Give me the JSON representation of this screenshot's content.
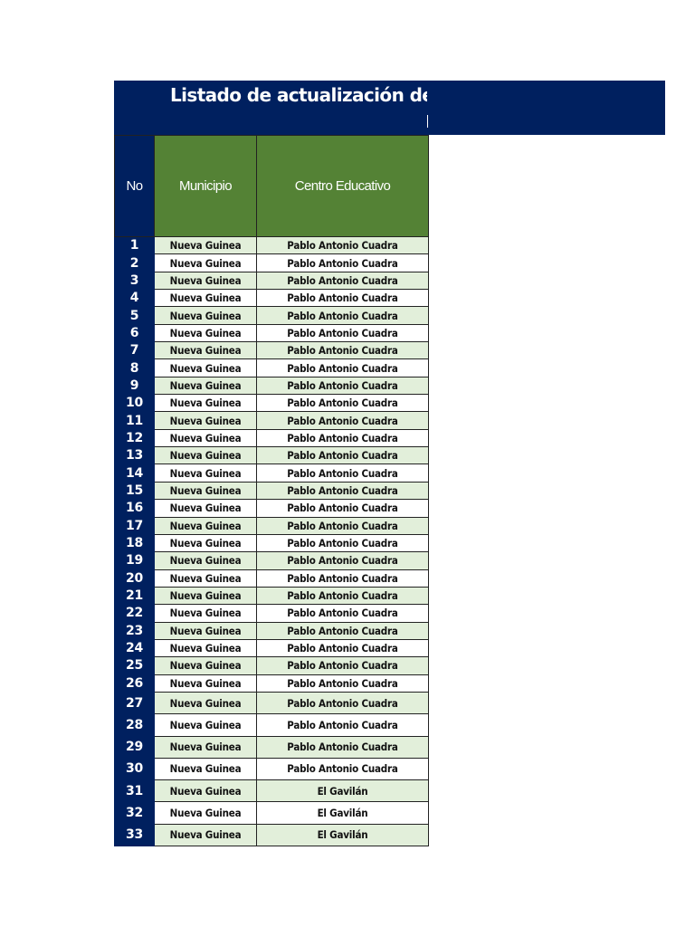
{
  "title": "Listado de actualización de pro",
  "headers": {
    "no": "No",
    "municipio": "Municipio",
    "centro": "Centro Educativo"
  },
  "colors": {
    "navy": "#00205f",
    "header_green": "#548235",
    "row_green": "#e2efda"
  },
  "rows": [
    {
      "no": "1",
      "municipio": "Nueva Guinea",
      "centro": "Pablo Antonio Cuadra"
    },
    {
      "no": "2",
      "municipio": "Nueva Guinea",
      "centro": "Pablo Antonio Cuadra"
    },
    {
      "no": "3",
      "municipio": "Nueva Guinea",
      "centro": "Pablo Antonio Cuadra"
    },
    {
      "no": "4",
      "municipio": "Nueva Guinea",
      "centro": "Pablo Antonio Cuadra"
    },
    {
      "no": "5",
      "municipio": "Nueva Guinea",
      "centro": "Pablo Antonio Cuadra"
    },
    {
      "no": "6",
      "municipio": "Nueva Guinea",
      "centro": "Pablo Antonio Cuadra"
    },
    {
      "no": "7",
      "municipio": "Nueva Guinea",
      "centro": "Pablo Antonio Cuadra"
    },
    {
      "no": "8",
      "municipio": "Nueva Guinea",
      "centro": "Pablo Antonio Cuadra"
    },
    {
      "no": "9",
      "municipio": "Nueva Guinea",
      "centro": "Pablo Antonio Cuadra"
    },
    {
      "no": "10",
      "municipio": "Nueva Guinea",
      "centro": "Pablo Antonio Cuadra"
    },
    {
      "no": "11",
      "municipio": "Nueva Guinea",
      "centro": "Pablo Antonio Cuadra"
    },
    {
      "no": "12",
      "municipio": "Nueva Guinea",
      "centro": "Pablo Antonio Cuadra"
    },
    {
      "no": "13",
      "municipio": "Nueva Guinea",
      "centro": "Pablo Antonio Cuadra"
    },
    {
      "no": "14",
      "municipio": "Nueva Guinea",
      "centro": "Pablo Antonio Cuadra"
    },
    {
      "no": "15",
      "municipio": "Nueva Guinea",
      "centro": "Pablo Antonio Cuadra"
    },
    {
      "no": "16",
      "municipio": "Nueva Guinea",
      "centro": "Pablo Antonio Cuadra"
    },
    {
      "no": "17",
      "municipio": "Nueva Guinea",
      "centro": "Pablo Antonio Cuadra"
    },
    {
      "no": "18",
      "municipio": "Nueva Guinea",
      "centro": "Pablo Antonio Cuadra"
    },
    {
      "no": "19",
      "municipio": "Nueva Guinea",
      "centro": "Pablo Antonio Cuadra"
    },
    {
      "no": "20",
      "municipio": "Nueva Guinea",
      "centro": "Pablo Antonio Cuadra"
    },
    {
      "no": "21",
      "municipio": "Nueva Guinea",
      "centro": "Pablo Antonio Cuadra"
    },
    {
      "no": "22",
      "municipio": "Nueva Guinea",
      "centro": "Pablo Antonio Cuadra"
    },
    {
      "no": "23",
      "municipio": "Nueva Guinea",
      "centro": "Pablo Antonio Cuadra"
    },
    {
      "no": "24",
      "municipio": "Nueva Guinea",
      "centro": "Pablo Antonio Cuadra"
    },
    {
      "no": "25",
      "municipio": "Nueva Guinea",
      "centro": "Pablo Antonio Cuadra"
    },
    {
      "no": "26",
      "municipio": "Nueva Guinea",
      "centro": "Pablo Antonio Cuadra"
    },
    {
      "no": "27",
      "municipio": "Nueva Guinea",
      "centro": "Pablo Antonio Cuadra"
    },
    {
      "no": "28",
      "municipio": "Nueva Guinea",
      "centro": "Pablo Antonio Cuadra"
    },
    {
      "no": "29",
      "municipio": "Nueva Guinea",
      "centro": "Pablo Antonio Cuadra"
    },
    {
      "no": "30",
      "municipio": "Nueva Guinea",
      "centro": "Pablo Antonio Cuadra"
    },
    {
      "no": "31",
      "municipio": "Nueva Guinea",
      "centro": "El Gavilán"
    },
    {
      "no": "32",
      "municipio": "Nueva Guinea",
      "centro": "El Gavilán"
    },
    {
      "no": "33",
      "municipio": "Nueva Guinea",
      "centro": "El Gavilán"
    }
  ]
}
